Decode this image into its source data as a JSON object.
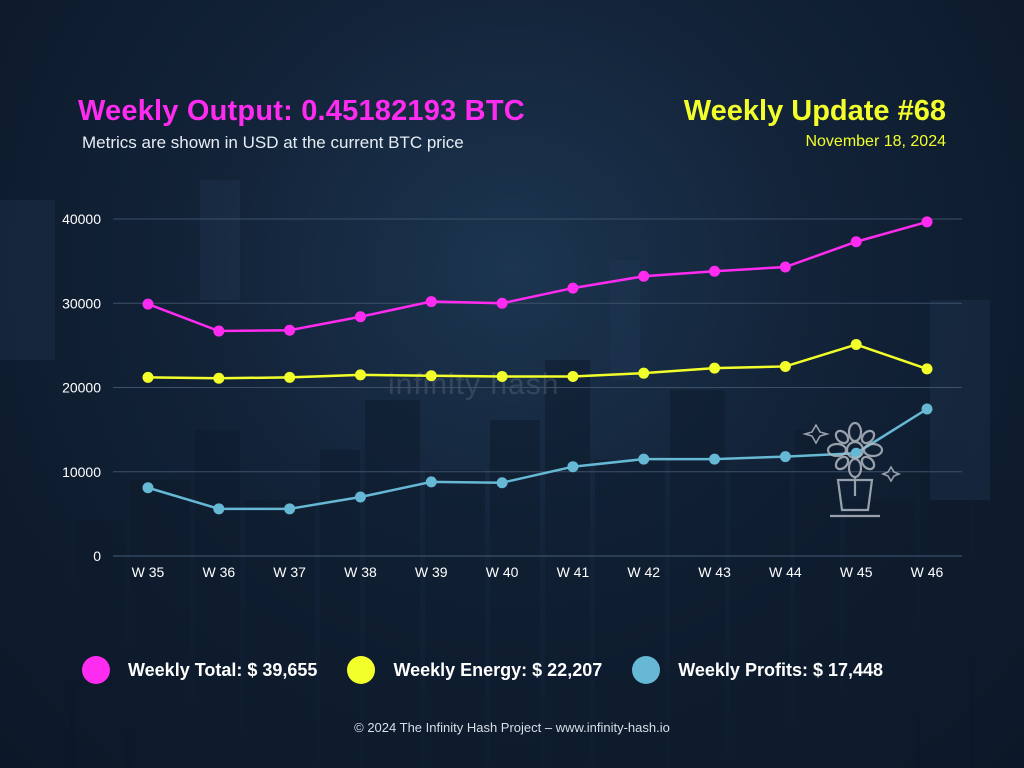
{
  "header": {
    "title": "Weekly Output: 0.45182193 BTC",
    "subtitle": "Metrics are shown in USD at the current BTC price",
    "update_title": "Weekly Update #68",
    "date": "November 18, 2024"
  },
  "watermark": "infinity hash",
  "colors": {
    "magenta": "#ff2bf0",
    "yellow": "#f2ff2a",
    "blue": "#66b8d4",
    "grid": "#3c5068",
    "tick_text": "#ffffff"
  },
  "chart_data": {
    "type": "line",
    "categories": [
      "W 35",
      "W 36",
      "W 37",
      "W 38",
      "W 39",
      "W 40",
      "W 41",
      "W 42",
      "W 43",
      "W 44",
      "W 45",
      "W 46"
    ],
    "ylim": [
      0,
      40000
    ],
    "yticks": [
      0,
      10000,
      20000,
      30000,
      40000
    ],
    "grid": true,
    "series": [
      {
        "name": "Weekly Total",
        "color": "#ff2bf0",
        "values": [
          29900,
          26700,
          26800,
          28400,
          30200,
          30000,
          31800,
          33200,
          33800,
          34300,
          37300,
          39655
        ]
      },
      {
        "name": "Weekly Energy",
        "color": "#f2ff2a",
        "values": [
          21200,
          21100,
          21200,
          21500,
          21400,
          21300,
          21300,
          21700,
          22300,
          22500,
          25100,
          22207
        ]
      },
      {
        "name": "Weekly Profits",
        "color": "#66b8d4",
        "values": [
          8100,
          5600,
          5600,
          7000,
          8800,
          8700,
          10600,
          11500,
          11500,
          11800,
          12200,
          17448
        ]
      }
    ]
  },
  "legend": {
    "total": "Weekly Total: $ 39,655",
    "energy": "Weekly Energy: $ 22,207",
    "profits": "Weekly Profits: $ 17,448"
  },
  "footer": "© 2024 The Infinity Hash Project – www.infinity-hash.io"
}
